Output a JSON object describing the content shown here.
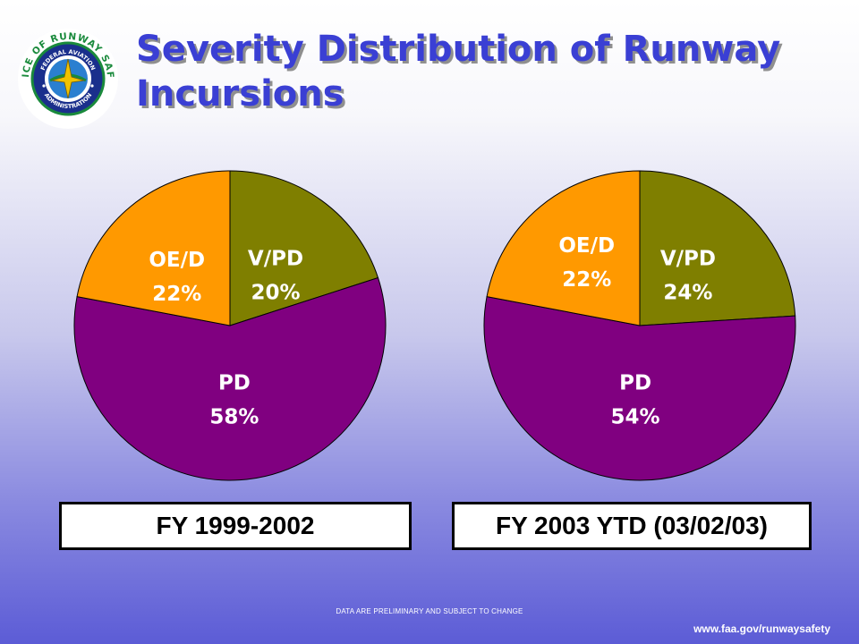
{
  "header": {
    "title": "Severity Distribution of Runway Incursions",
    "logo_text": {
      "outer_top": "OFFICE OF RUNWAY SAFETY",
      "inner_top": "FEDERAL AVIATION",
      "inner_bottom": "ADMINISTRATION"
    }
  },
  "chart_data": [
    {
      "type": "pie",
      "caption": "FY 1999-2002",
      "slices": [
        {
          "label": "V/PD",
          "value": 20,
          "display": "20%",
          "color": "#7f7f00"
        },
        {
          "label": "PD",
          "value": 58,
          "display": "58%",
          "color": "#800080"
        },
        {
          "label": "OE/D",
          "value": 22,
          "display": "22%",
          "color": "#ff9900"
        }
      ]
    },
    {
      "type": "pie",
      "caption": "FY 2003 YTD (03/02/03)",
      "slices": [
        {
          "label": "V/PD",
          "value": 24,
          "display": "24%",
          "color": "#7f7f00"
        },
        {
          "label": "PD",
          "value": 54,
          "display": "54%",
          "color": "#800080"
        },
        {
          "label": "OE/D",
          "value": 22,
          "display": "22%",
          "color": "#ff9900"
        }
      ]
    }
  ],
  "footer": {
    "disclaimer": "DATA ARE PRELIMINARY AND SUBJECT TO CHANGE",
    "url": "www.faa.gov/runwaysafety"
  }
}
